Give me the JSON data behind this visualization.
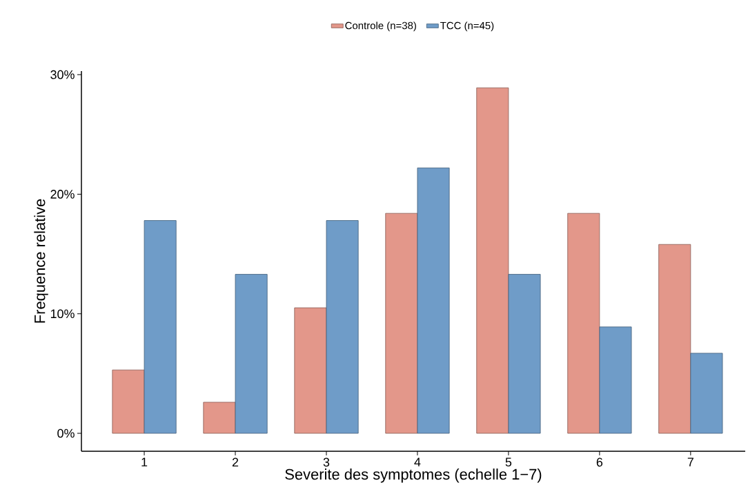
{
  "chart_data": {
    "type": "bar",
    "xlabel": "Severite des symptomes (echelle 1−7)",
    "ylabel": "Frequence relative",
    "categories": [
      "1",
      "2",
      "3",
      "4",
      "5",
      "6",
      "7"
    ],
    "series": [
      {
        "name": "Controle (n=38)",
        "color": "#e3978a",
        "values": [
          5.3,
          2.6,
          10.5,
          18.4,
          28.9,
          18.4,
          15.8
        ]
      },
      {
        "name": "TCC (n=45)",
        "color": "#6f9cc8",
        "values": [
          17.8,
          13.3,
          17.8,
          22.2,
          13.3,
          8.9,
          6.7
        ]
      }
    ],
    "ylim": [
      -1.5,
      30.3
    ],
    "yticks": [
      {
        "value": 0,
        "label": "0%"
      },
      {
        "value": 10,
        "label": "10%"
      },
      {
        "value": 20,
        "label": "20%"
      },
      {
        "value": 30,
        "label": "30%"
      }
    ],
    "grid": false,
    "legend": "top"
  }
}
